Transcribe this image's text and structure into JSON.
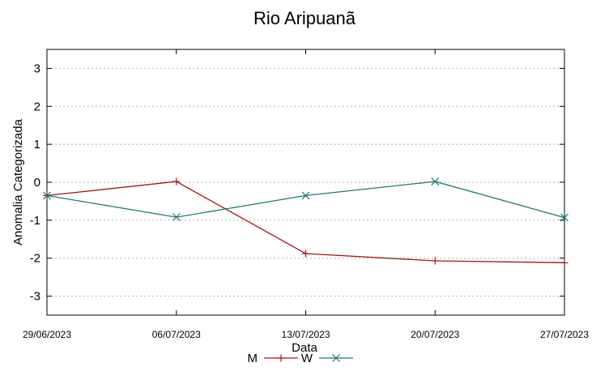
{
  "chart_data": {
    "type": "line",
    "title": "Rio Aripuanã",
    "xlabel": "Data",
    "ylabel": "Anomalia Categorizada",
    "categories": [
      "29/06/2023",
      "06/07/2023",
      "13/07/2023",
      "20/07/2023",
      "27/07/2023"
    ],
    "ylim": [
      -3.5,
      3.5
    ],
    "yticks": [
      3,
      2,
      1,
      0,
      -1,
      -2,
      -3
    ],
    "grid": true,
    "legend_position": "bottom-center",
    "series": [
      {
        "name": "M",
        "color": "#a01818",
        "marker": "plus",
        "values": [
          -0.35,
          0.02,
          -1.88,
          -2.07,
          -2.12
        ]
      },
      {
        "name": "W",
        "color": "#1f7a76",
        "marker": "cross",
        "values": [
          -0.35,
          -0.92,
          -0.35,
          0.02,
          -0.93
        ]
      }
    ]
  }
}
